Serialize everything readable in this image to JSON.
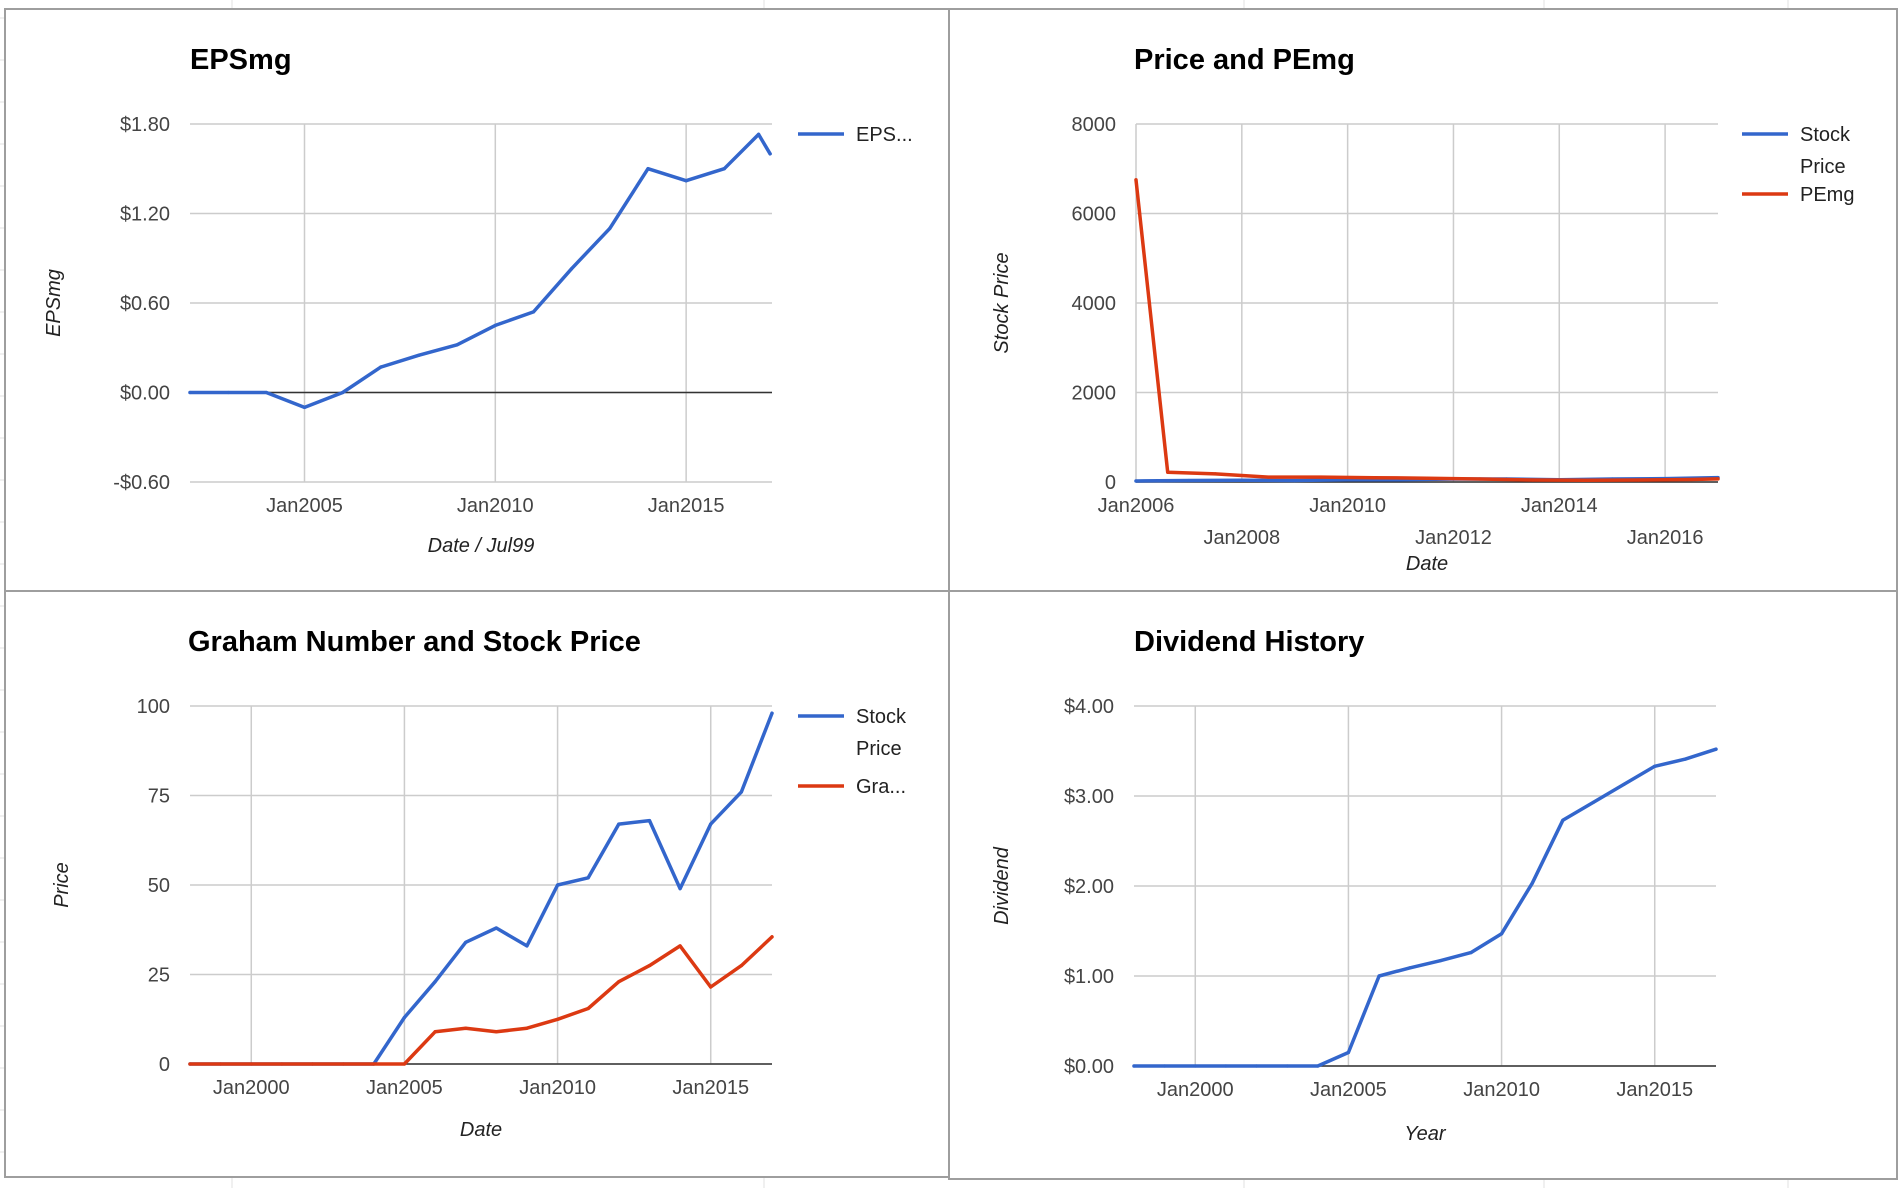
{
  "colors": {
    "blue": "#3366cc",
    "red": "#dc3912",
    "grid": "#cccccc",
    "baseline": "#333333"
  },
  "charts": [
    {
      "id": "epsmg",
      "chart_data": {
        "type": "line",
        "title": "EPSmg",
        "xlabel": "Date / Jul99",
        "ylabel": "EPSmg",
        "x_tick_labels": [
          "Jan2005",
          "Jan2010",
          "Jan2015"
        ],
        "y_tick_labels": [
          "$1.80",
          "$1.20",
          "$0.60",
          "$0.00",
          "-$0.60"
        ],
        "xlim": [
          2002.0,
          2017.25
        ],
        "ylim": [
          -0.6,
          1.8
        ],
        "x_ticks": [
          2005,
          2010,
          2015
        ],
        "y_ticks": [
          1.8,
          1.2,
          0.6,
          0.0,
          -0.6
        ],
        "grid": true,
        "legend": "right",
        "series": [
          {
            "name": "EPS...",
            "color": "#3366cc",
            "x": [
              2002,
              2003,
              2004,
              2005,
              2006,
              2007,
              2008,
              2009,
              2010,
              2011,
              2012,
              2013,
              2014,
              2015,
              2016,
              2016.9,
              2017.2
            ],
            "y": [
              0.0,
              0.0,
              0.0,
              -0.1,
              0.0,
              0.17,
              0.25,
              0.32,
              0.45,
              0.54,
              0.83,
              1.1,
              1.5,
              1.42,
              1.5,
              1.73,
              1.6
            ]
          }
        ]
      }
    },
    {
      "id": "price-pemg",
      "chart_data": {
        "type": "line",
        "title": "Price and PEmg",
        "xlabel": "Date",
        "ylabel": "Stock Price",
        "x_tick_labels": [
          "Jan2006",
          "Jan2008",
          "Jan2010",
          "Jan2012",
          "Jan2014",
          "Jan2016"
        ],
        "y_tick_labels": [
          "8000",
          "6000",
          "4000",
          "2000",
          "0"
        ],
        "xlim": [
          2006.0,
          2017.0
        ],
        "ylim": [
          0,
          8000
        ],
        "x_ticks": [
          2006,
          2008,
          2010,
          2012,
          2014,
          2016
        ],
        "y_ticks": [
          8000,
          6000,
          4000,
          2000,
          0
        ],
        "grid": true,
        "legend": "right",
        "series": [
          {
            "name": "Stock Price",
            "color": "#3366cc",
            "x": [
              2006,
              2007,
              2008,
              2009,
              2010,
              2011,
              2012,
              2013,
              2014,
              2015,
              2016,
              2017
            ],
            "y": [
              23,
              34,
              38,
              33,
              50,
              52,
              67,
              68,
              49,
              67,
              76,
              98
            ]
          },
          {
            "name": "PEmg",
            "color": "#dc3912",
            "x": [
              2006,
              2006.6,
              2007.5,
              2008.5,
              2009.5,
              2010.5,
              2011.5,
              2012.5,
              2013.5,
              2014.5,
              2015.5,
              2016.5,
              2017
            ],
            "y": [
              6750,
              220,
              180,
              110,
              110,
              95,
              85,
              68,
              45,
              40,
              45,
              55,
              70
            ]
          }
        ]
      }
    },
    {
      "id": "graham",
      "chart_data": {
        "type": "line",
        "title": "Graham Number and Stock Price",
        "xlabel": "Date",
        "ylabel": "Price",
        "x_tick_labels": [
          "Jan2000",
          "Jan2005",
          "Jan2010",
          "Jan2015"
        ],
        "y_tick_labels": [
          "100",
          "75",
          "50",
          "25",
          "0"
        ],
        "xlim": [
          1998.0,
          2017.0
        ],
        "ylim": [
          0,
          100
        ],
        "x_ticks": [
          2000,
          2005,
          2010,
          2015
        ],
        "y_ticks": [
          100,
          75,
          50,
          25,
          0
        ],
        "grid": true,
        "legend": "right",
        "series": [
          {
            "name": "Stock Price",
            "color": "#3366cc",
            "x": [
              1998,
              1999,
              2000,
              2001,
              2002,
              2003,
              2004,
              2005,
              2006,
              2007,
              2008,
              2009,
              2010,
              2011,
              2012,
              2013,
              2014,
              2015,
              2016,
              2017
            ],
            "y": [
              0,
              0,
              0,
              0,
              0,
              0,
              0,
              13,
              23,
              34,
              38,
              33,
              50,
              52,
              67,
              68,
              49,
              67,
              76,
              98
            ]
          },
          {
            "name": "Gra...",
            "color": "#dc3912",
            "x": [
              1998,
              1999,
              2000,
              2001,
              2002,
              2003,
              2004,
              2005,
              2006,
              2007,
              2008,
              2009,
              2010,
              2011,
              2012,
              2013,
              2014,
              2015,
              2016,
              2017
            ],
            "y": [
              0,
              0,
              0,
              0,
              0,
              0,
              0,
              0,
              9,
              10,
              9,
              10,
              12.5,
              15.5,
              23,
              27.5,
              33,
              21.5,
              27.5,
              35.5
            ]
          }
        ]
      }
    },
    {
      "id": "dividend",
      "chart_data": {
        "type": "line",
        "title": "Dividend History",
        "xlabel": "Year",
        "ylabel": "Dividend",
        "x_tick_labels": [
          "Jan2000",
          "Jan2005",
          "Jan2010",
          "Jan2015"
        ],
        "y_tick_labels": [
          "$4.00",
          "$3.00",
          "$2.00",
          "$1.00",
          "$0.00"
        ],
        "xlim": [
          1998.0,
          2017.0
        ],
        "ylim": [
          0,
          4
        ],
        "x_ticks": [
          2000,
          2005,
          2010,
          2015
        ],
        "y_ticks": [
          4,
          3,
          2,
          1,
          0
        ],
        "grid": true,
        "legend": "none",
        "series": [
          {
            "color": "#3366cc",
            "x": [
              1998,
              1999,
              2000,
              2001,
              2002,
              2003,
              2004,
              2005,
              2006,
              2007,
              2008,
              2009,
              2010,
              2011,
              2012,
              2013,
              2014,
              2015,
              2016,
              2017
            ],
            "y": [
              0,
              0,
              0,
              0,
              0,
              0,
              0,
              0.15,
              1.0,
              1.09,
              1.17,
              1.26,
              1.47,
              2.03,
              2.73,
              2.93,
              3.13,
              3.33,
              3.41,
              3.52
            ]
          }
        ]
      }
    }
  ]
}
